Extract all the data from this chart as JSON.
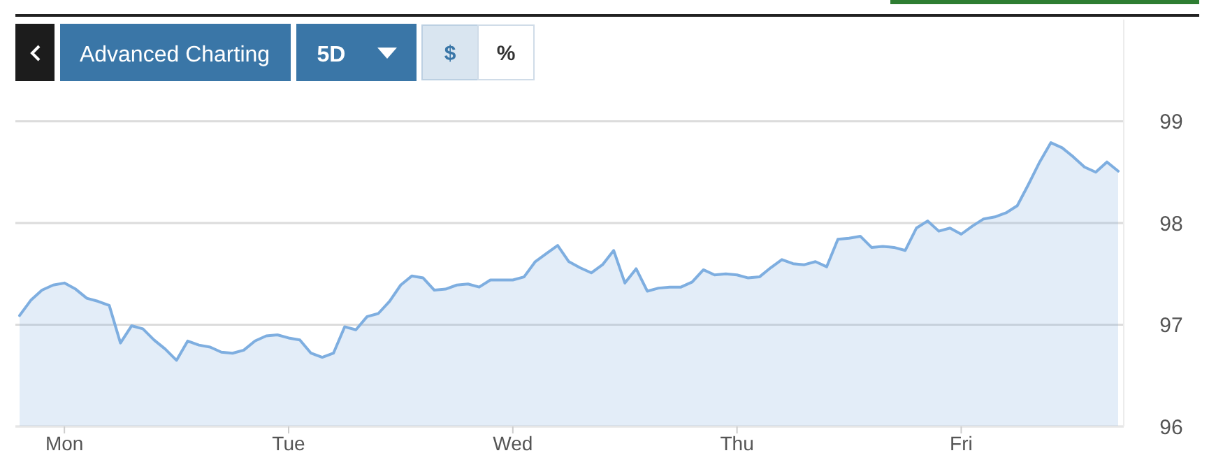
{
  "chart_data": {
    "type": "area",
    "annotations": [
      "Advanced Charting",
      "5D",
      "$",
      "%"
    ],
    "categories": [
      null,
      null,
      null,
      null,
      "Mon",
      null,
      null,
      null,
      null,
      null,
      null,
      null,
      null,
      null,
      null,
      null,
      null,
      null,
      null,
      null,
      null,
      null,
      null,
      null,
      "Tue",
      null,
      null,
      null,
      null,
      null,
      null,
      null,
      null,
      null,
      null,
      null,
      null,
      null,
      null,
      null,
      null,
      null,
      null,
      null,
      "Wed",
      null,
      null,
      null,
      null,
      null,
      null,
      null,
      null,
      null,
      null,
      null,
      null,
      null,
      null,
      null,
      null,
      null,
      null,
      null,
      "Thu",
      null,
      null,
      null,
      null,
      null,
      null,
      null,
      null,
      null,
      null,
      null,
      null,
      null,
      null,
      null,
      null,
      null,
      null,
      null,
      "Fri",
      null,
      null,
      null,
      null,
      null,
      null,
      null,
      null,
      null,
      null,
      null,
      null,
      null,
      null
    ],
    "series": [
      {
        "color": "#7eaee0",
        "values": [
          97.09,
          97.24,
          97.34,
          97.39,
          97.41,
          97.35,
          97.26,
          97.23,
          97.19,
          96.82,
          96.99,
          96.96,
          96.85,
          96.76,
          96.65,
          96.84,
          96.8,
          96.78,
          96.73,
          96.72,
          96.75,
          96.84,
          96.89,
          96.9,
          96.87,
          96.85,
          96.72,
          96.68,
          96.72,
          96.98,
          96.95,
          97.08,
          97.11,
          97.23,
          97.39,
          97.48,
          97.46,
          97.34,
          97.35,
          97.39,
          97.4,
          97.37,
          97.44,
          97.44,
          97.44,
          97.47,
          97.62,
          97.7,
          97.78,
          97.62,
          97.56,
          97.51,
          97.59,
          97.73,
          97.41,
          97.55,
          97.33,
          97.36,
          97.37,
          97.37,
          97.42,
          97.54,
          97.49,
          97.5,
          97.49,
          97.46,
          97.47,
          97.56,
          97.64,
          97.6,
          97.59,
          97.62,
          97.57,
          97.84,
          97.85,
          97.87,
          97.76,
          97.77,
          97.76,
          97.73,
          97.95,
          98.02,
          97.92,
          97.95,
          97.89,
          97.97,
          98.04,
          98.06,
          98.1,
          98.17,
          98.38,
          98.6,
          98.79,
          98.74,
          98.65,
          98.55,
          98.5,
          98.6,
          98.51
        ]
      }
    ],
    "ylim": [
      96,
      100
    ],
    "yticks": [
      96,
      97,
      98,
      99
    ],
    "grid": "y"
  }
}
